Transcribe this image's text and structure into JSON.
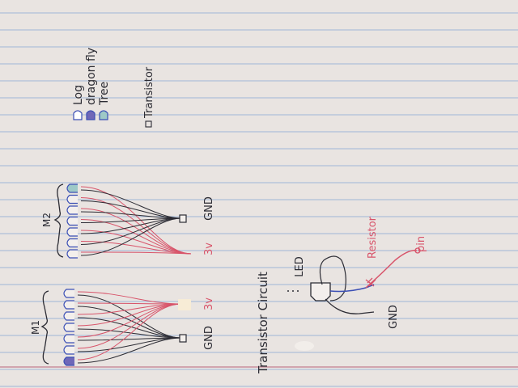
{
  "labels": {
    "m1": "M1",
    "m2": "M2",
    "gnd_left": "GND",
    "v3_left": "3v",
    "v3_right": "3v",
    "gnd_right": "GND",
    "transistor_circuit": "Transistor Circuit",
    "led": "LED",
    "resistor": "Resistor",
    "pin": "pin",
    "gnd_bottom": "GND"
  },
  "legend": [
    {
      "label": "Log",
      "fill": "#ffffff"
    },
    {
      "label": "dragon fly",
      "fill": "#6f67b8"
    },
    {
      "label": "Tree",
      "fill": "#9ec9c7"
    }
  ],
  "transistor_legend": "Transistor",
  "colors": {
    "paper": "#e9e4e1",
    "rule_line": "#9fb6d6",
    "margin_line": "#c98f9d",
    "ink_black": "#2c2c34",
    "ink_red": "#d8546a",
    "ink_blue": "#3b4fb5"
  }
}
